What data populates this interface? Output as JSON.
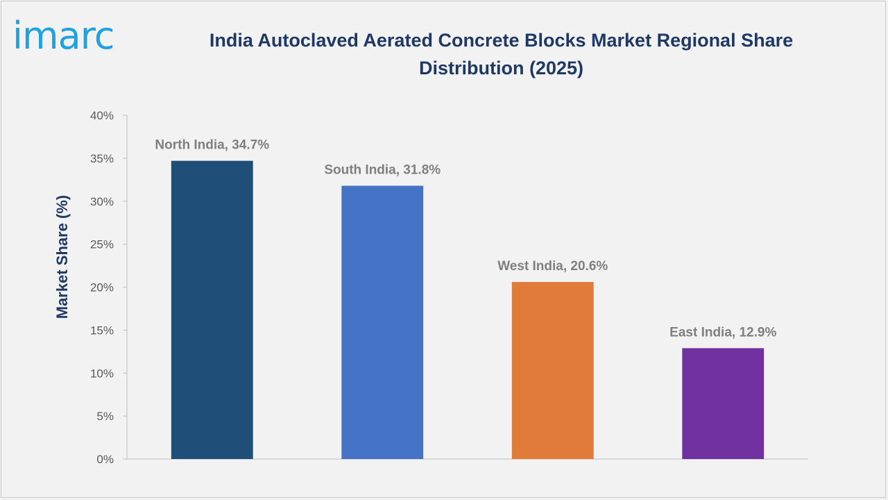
{
  "brand": {
    "logo_text": "imarc"
  },
  "chart_data": {
    "type": "bar",
    "title": "India Autoclaved Aerated Concrete Blocks Market Regional Share Distribution (2025)",
    "title_lines": [
      "India Autoclaved Aerated Concrete Blocks Market Regional Share",
      "Distribution (2025)"
    ],
    "xlabel": "",
    "ylabel": "Market Share (%)",
    "ylim": [
      0,
      40
    ],
    "yticks": [
      0,
      5,
      10,
      15,
      20,
      25,
      30,
      35,
      40
    ],
    "ytick_labels": [
      "0%",
      "5%",
      "10%",
      "15%",
      "20%",
      "25%",
      "30%",
      "35%",
      "40%"
    ],
    "categories": [
      "North India",
      "South India",
      "West India",
      "East India"
    ],
    "values": [
      34.7,
      31.8,
      20.6,
      12.9
    ],
    "data_labels": [
      "North India, 34.7%",
      "South India, 31.8%",
      "West India, 20.6%",
      "East India, 12.9%"
    ],
    "colors": [
      "#1f4e79",
      "#4472c4",
      "#e07b39",
      "#7030a0"
    ],
    "grid": false,
    "legend": "none"
  }
}
